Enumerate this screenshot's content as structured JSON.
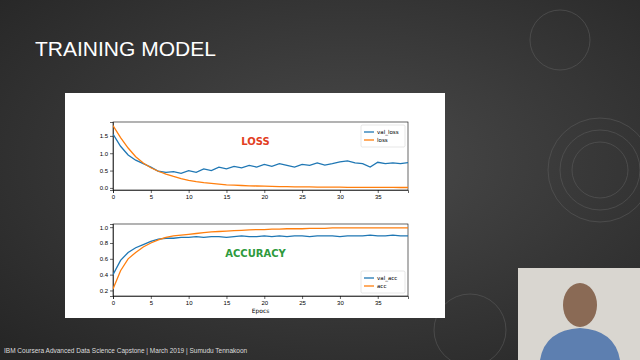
{
  "slide": {
    "title": "TRAINING MODEL",
    "footer": "IBM Coursera Advanced Data Science Capstone | March 2019 | Sumudu Tennakoon"
  },
  "chart_data": [
    {
      "type": "line",
      "title": "LOSS",
      "legend": "upper right",
      "grid": false,
      "x": [
        0,
        1,
        2,
        3,
        4,
        5,
        6,
        7,
        8,
        9,
        10,
        11,
        12,
        13,
        14,
        15,
        16,
        17,
        18,
        19,
        20,
        21,
        22,
        23,
        24,
        25,
        26,
        27,
        28,
        29,
        30,
        31,
        32,
        33,
        34,
        35,
        36,
        37,
        38,
        39
      ],
      "xlim": [
        0,
        39
      ],
      "xticks": [
        0,
        5,
        10,
        15,
        20,
        25,
        30,
        35
      ],
      "ylim": [
        -0.06,
        1.9
      ],
      "yticks": [
        {
          "value": 0,
          "label": "0.0"
        },
        {
          "value": 0.5,
          "label": "0.5"
        },
        {
          "value": 1,
          "label": "1.0"
        },
        {
          "value": 1.5,
          "label": "1.5"
        }
      ],
      "series": [
        {
          "name": "val_loss",
          "color": "#1f77b4",
          "values": [
            1.55,
            1.2,
            0.95,
            0.8,
            0.7,
            0.6,
            0.48,
            0.45,
            0.47,
            0.42,
            0.5,
            0.45,
            0.55,
            0.5,
            0.6,
            0.55,
            0.62,
            0.58,
            0.65,
            0.6,
            0.68,
            0.62,
            0.7,
            0.65,
            0.6,
            0.68,
            0.65,
            0.72,
            0.66,
            0.7,
            0.75,
            0.78,
            0.72,
            0.7,
            0.6,
            0.74,
            0.7,
            0.72,
            0.7,
            0.73
          ]
        },
        {
          "name": "loss",
          "color": "#ff7f0e",
          "values": [
            1.8,
            1.45,
            1.15,
            0.9,
            0.72,
            0.58,
            0.48,
            0.4,
            0.33,
            0.27,
            0.22,
            0.18,
            0.15,
            0.13,
            0.11,
            0.09,
            0.08,
            0.07,
            0.06,
            0.055,
            0.05,
            0.045,
            0.04,
            0.035,
            0.03,
            0.03,
            0.028,
            0.025,
            0.022,
            0.02,
            0.02,
            0.018,
            0.017,
            0.016,
            0.015,
            0.014,
            0.013,
            0.013,
            0.012,
            0.012
          ]
        }
      ]
    },
    {
      "type": "line",
      "title": "ACCURACY",
      "xlabel": "Epocs",
      "legend": "lower right",
      "grid": false,
      "x": [
        0,
        1,
        2,
        3,
        4,
        5,
        6,
        7,
        8,
        9,
        10,
        11,
        12,
        13,
        14,
        15,
        16,
        17,
        18,
        19,
        20,
        21,
        22,
        23,
        24,
        25,
        26,
        27,
        28,
        29,
        30,
        31,
        32,
        33,
        34,
        35,
        36,
        37,
        38,
        39
      ],
      "xlim": [
        0,
        39
      ],
      "xticks": [
        0,
        5,
        10,
        15,
        20,
        25,
        30,
        35
      ],
      "ylim": [
        0.13,
        1.04
      ],
      "yticks": [
        {
          "value": 0.2,
          "label": "0.2"
        },
        {
          "value": 0.4,
          "label": "0.4"
        },
        {
          "value": 0.6,
          "label": "0.6"
        },
        {
          "value": 0.8,
          "label": "0.8"
        },
        {
          "value": 1,
          "label": "1.0"
        }
      ],
      "series": [
        {
          "name": "val_acc",
          "color": "#1f77b4",
          "values": [
            0.4,
            0.58,
            0.68,
            0.74,
            0.78,
            0.82,
            0.85,
            0.86,
            0.86,
            0.87,
            0.87,
            0.88,
            0.87,
            0.88,
            0.88,
            0.87,
            0.88,
            0.89,
            0.88,
            0.88,
            0.89,
            0.88,
            0.89,
            0.88,
            0.89,
            0.89,
            0.88,
            0.89,
            0.89,
            0.89,
            0.88,
            0.89,
            0.89,
            0.89,
            0.9,
            0.89,
            0.89,
            0.9,
            0.89,
            0.89
          ]
        },
        {
          "name": "acc",
          "color": "#ff7f0e",
          "values": [
            0.22,
            0.45,
            0.6,
            0.68,
            0.75,
            0.8,
            0.84,
            0.87,
            0.89,
            0.9,
            0.91,
            0.92,
            0.93,
            0.94,
            0.945,
            0.95,
            0.955,
            0.96,
            0.965,
            0.97,
            0.97,
            0.975,
            0.975,
            0.98,
            0.98,
            0.98,
            0.985,
            0.985,
            0.985,
            0.99,
            0.99,
            0.99,
            0.99,
            0.99,
            0.99,
            0.99,
            0.99,
            0.99,
            0.99,
            0.99
          ]
        }
      ]
    }
  ]
}
